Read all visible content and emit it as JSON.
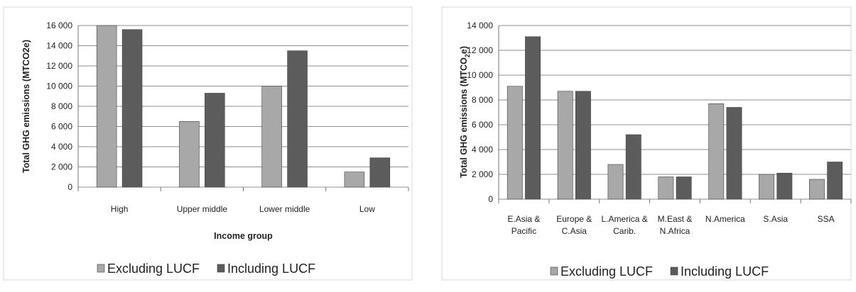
{
  "chart_data": [
    {
      "type": "bar",
      "categories": [
        "High",
        "Upper middle",
        "Lower middle",
        "Low"
      ],
      "series": [
        {
          "name": "Excluding LUCF",
          "values": [
            16000,
            6500,
            10000,
            1500
          ]
        },
        {
          "name": "Including LUCF",
          "values": [
            15600,
            9300,
            13500,
            2900
          ]
        }
      ],
      "ylim": [
        0,
        16000
      ],
      "yticks": [
        0,
        2000,
        4000,
        6000,
        8000,
        10000,
        12000,
        14000,
        16000
      ],
      "ytick_labels": [
        "0",
        "2 000",
        "4 000",
        "6 000",
        "8 000",
        "10 000",
        "12 000",
        "14 000",
        "16 000"
      ],
      "xlabel": "Income group",
      "ylabel": "Total GHG emissions (MTCO2e)",
      "legend": "bottom",
      "grid": true
    },
    {
      "type": "bar",
      "categories": [
        [
          "E.Asia &",
          "Pacific"
        ],
        [
          "Europe &",
          "C.Asia"
        ],
        [
          "L.America &",
          "Carib."
        ],
        [
          "M.East &",
          "N.Africa"
        ],
        [
          "N.America"
        ],
        [
          "S.Asia"
        ],
        [
          "SSA"
        ]
      ],
      "series": [
        {
          "name": "Excluding LUCF",
          "values": [
            9100,
            8700,
            2800,
            1800,
            7700,
            2000,
            1600
          ]
        },
        {
          "name": "Including LUCF",
          "values": [
            13100,
            8700,
            5200,
            1800,
            7400,
            2100,
            3000
          ]
        }
      ],
      "ylim": [
        0,
        14000
      ],
      "yticks": [
        0,
        2000,
        4000,
        6000,
        8000,
        10000,
        12000,
        14000
      ],
      "ytick_labels": [
        "0",
        "2 000",
        "4 000",
        "6 000",
        "8 000",
        "10 000",
        "12 000",
        "14 000"
      ],
      "xlabel": "",
      "ylabel_parts": [
        "Total GHG emissions (MTCO",
        "2",
        "e)"
      ],
      "legend": "bottom",
      "grid": true
    }
  ],
  "colors": {
    "excluding": "#a8a8a8",
    "including": "#5c5c5c",
    "grid": "#8f8f8f"
  }
}
